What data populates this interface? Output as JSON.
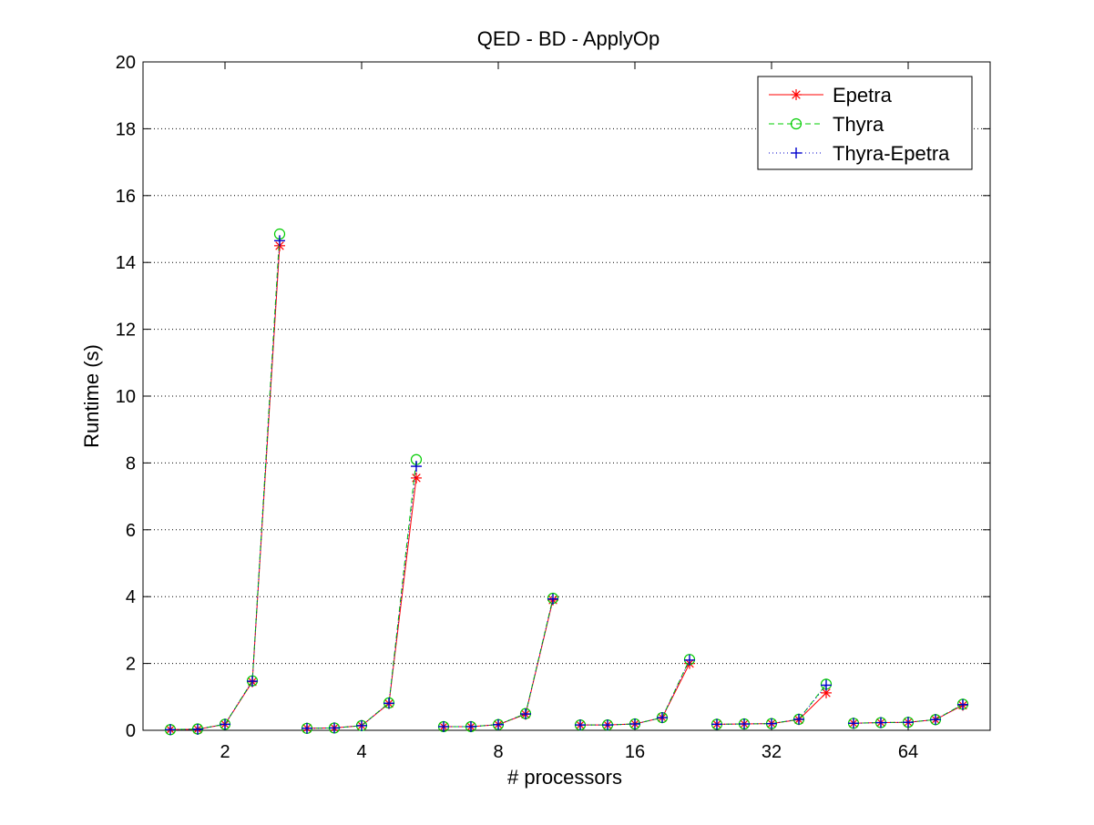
{
  "chart_data": {
    "type": "line",
    "title": "QED - BD - ApplyOp",
    "xlabel": "# processors",
    "ylabel": "Runtime (s)",
    "ylim": [
      0,
      20
    ],
    "yticks": [
      0,
      2,
      4,
      6,
      8,
      10,
      12,
      14,
      16,
      18,
      20
    ],
    "grid": "y-dotted",
    "legend_position": "top-right",
    "groups": [
      "2",
      "4",
      "8",
      "16",
      "32",
      "64"
    ],
    "points_per_group": 5,
    "series": [
      {
        "name": "Epetra",
        "color": "#ff0000",
        "line_style": "solid",
        "marker": "asterisk",
        "values": [
          [
            0.02,
            0.03,
            0.18,
            1.45,
            14.5
          ],
          [
            0.06,
            0.07,
            0.14,
            0.8,
            7.55
          ],
          [
            0.11,
            0.11,
            0.17,
            0.48,
            3.9
          ],
          [
            0.16,
            0.16,
            0.19,
            0.38,
            2.0
          ],
          [
            0.18,
            0.19,
            0.2,
            0.32,
            1.12
          ],
          [
            0.21,
            0.23,
            0.24,
            0.32,
            0.75
          ]
        ]
      },
      {
        "name": "Thyra",
        "color": "#00cc00",
        "line_style": "dashed",
        "marker": "circle",
        "values": [
          [
            0.02,
            0.04,
            0.18,
            1.48,
            14.85
          ],
          [
            0.06,
            0.07,
            0.14,
            0.82,
            8.1
          ],
          [
            0.11,
            0.11,
            0.17,
            0.5,
            3.95
          ],
          [
            0.16,
            0.16,
            0.19,
            0.38,
            2.12
          ],
          [
            0.18,
            0.19,
            0.2,
            0.33,
            1.38
          ],
          [
            0.21,
            0.23,
            0.24,
            0.32,
            0.78
          ]
        ]
      },
      {
        "name": "Thyra-Epetra",
        "color": "#0000cc",
        "line_style": "dotted",
        "marker": "plus",
        "values": [
          [
            0.02,
            0.03,
            0.18,
            1.47,
            14.65
          ],
          [
            0.06,
            0.07,
            0.14,
            0.81,
            7.9
          ],
          [
            0.11,
            0.11,
            0.17,
            0.49,
            3.93
          ],
          [
            0.16,
            0.16,
            0.19,
            0.38,
            2.1
          ],
          [
            0.18,
            0.19,
            0.2,
            0.33,
            1.35
          ],
          [
            0.21,
            0.23,
            0.24,
            0.32,
            0.77
          ]
        ]
      }
    ]
  }
}
